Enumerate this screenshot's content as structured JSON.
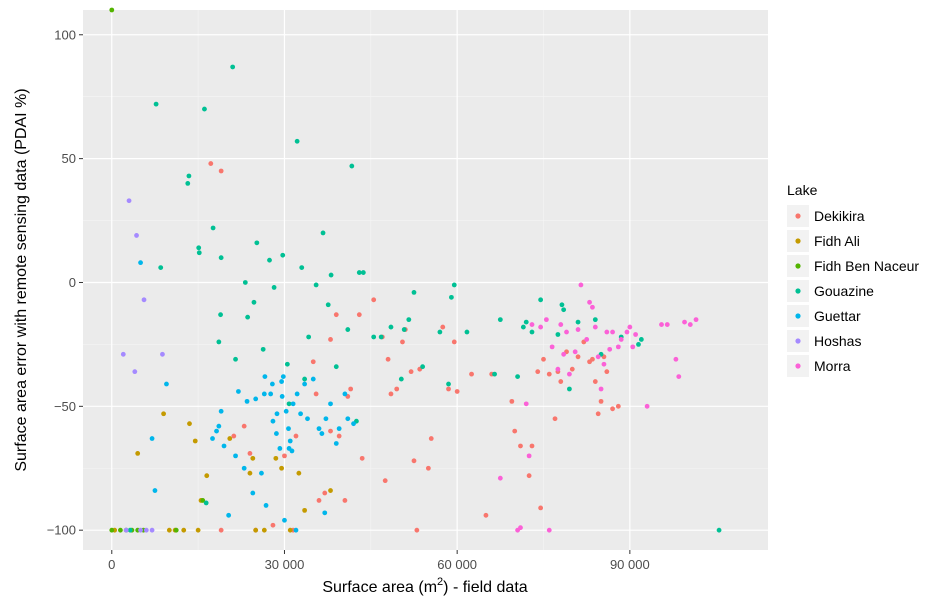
{
  "chart_data": {
    "type": "scatter",
    "title": "",
    "xlabel": "Surface area (m",
    "xlabel_sup": "2",
    "xlabel_tail": ") - field data",
    "ylabel": "Surface area error with remote sensing data (PDAI %)",
    "xlim": [
      -5000,
      114000
    ],
    "ylim": [
      -108,
      110
    ],
    "xticks": [
      {
        "value": 0,
        "label": "0"
      },
      {
        "value": 30000,
        "label": "30 000"
      },
      {
        "value": 60000,
        "label": "60 000"
      },
      {
        "value": 90000,
        "label": "90 000"
      }
    ],
    "yticks": [
      {
        "value": 100,
        "label": "100"
      },
      {
        "value": 50,
        "label": "50"
      },
      {
        "value": 0,
        "label": "0"
      },
      {
        "value": -50,
        "label": "−50"
      },
      {
        "value": -100,
        "label": "−100"
      }
    ],
    "grid": true,
    "legend_title": "Lake",
    "legend_position": "right",
    "series": [
      {
        "name": "Dekikira",
        "color": "#F8766D",
        "points": [
          [
            17200,
            48
          ],
          [
            19000,
            45
          ],
          [
            19000,
            -100
          ],
          [
            21200,
            -62
          ],
          [
            23000,
            -58
          ],
          [
            24000,
            -69
          ],
          [
            25000,
            -100
          ],
          [
            28000,
            -98
          ],
          [
            30000,
            -70
          ],
          [
            31500,
            -100
          ],
          [
            32000,
            -62
          ],
          [
            35000,
            -32
          ],
          [
            35500,
            -45
          ],
          [
            36000,
            -88
          ],
          [
            37000,
            -85
          ],
          [
            38000,
            -60
          ],
          [
            38000,
            -23
          ],
          [
            39000,
            -13
          ],
          [
            39500,
            -62
          ],
          [
            40500,
            -88
          ],
          [
            41000,
            -46
          ],
          [
            41500,
            -43
          ],
          [
            43000,
            -13
          ],
          [
            43500,
            -71
          ],
          [
            45500,
            -7
          ],
          [
            47000,
            -22
          ],
          [
            47500,
            -80
          ],
          [
            48000,
            -31
          ],
          [
            48500,
            -45
          ],
          [
            49500,
            -43
          ],
          [
            50500,
            -24
          ],
          [
            51000,
            -19
          ],
          [
            52000,
            -36
          ],
          [
            52500,
            -72
          ],
          [
            53000,
            -100
          ],
          [
            53500,
            -35
          ],
          [
            55000,
            -75
          ],
          [
            55500,
            -63
          ],
          [
            57500,
            -18
          ],
          [
            58500,
            -43
          ],
          [
            59500,
            -24
          ],
          [
            60000,
            -44
          ],
          [
            62500,
            -37
          ],
          [
            65000,
            -94
          ],
          [
            66000,
            -37
          ],
          [
            69500,
            -48
          ],
          [
            70000,
            -60
          ],
          [
            71000,
            -66
          ],
          [
            72500,
            -78
          ],
          [
            73000,
            -66
          ],
          [
            74000,
            -36
          ],
          [
            74500,
            -91
          ],
          [
            75000,
            -31
          ],
          [
            76000,
            -37
          ],
          [
            77000,
            -55
          ],
          [
            77500,
            -36
          ],
          [
            78000,
            -40
          ],
          [
            79000,
            -28
          ],
          [
            80000,
            -35
          ],
          [
            81000,
            -30
          ],
          [
            82000,
            -24
          ],
          [
            83000,
            -32
          ],
          [
            83500,
            -31
          ],
          [
            84000,
            -40
          ],
          [
            85000,
            -48
          ],
          [
            86000,
            -36
          ],
          [
            87000,
            -51
          ],
          [
            88000,
            -50
          ],
          [
            84500,
            -53
          ],
          [
            85500,
            -30
          ]
        ]
      },
      {
        "name": "Fidh Ali",
        "color": "#C49A00",
        "points": [
          [
            500,
            -100
          ],
          [
            4500,
            -69
          ],
          [
            9000,
            -53
          ],
          [
            10000,
            -100
          ],
          [
            11000,
            -100
          ],
          [
            12500,
            -100
          ],
          [
            13500,
            -57
          ],
          [
            14500,
            -64
          ],
          [
            15000,
            -100
          ],
          [
            15500,
            -88
          ],
          [
            16500,
            -78
          ],
          [
            20500,
            -63
          ],
          [
            24000,
            -77
          ],
          [
            25000,
            -100
          ],
          [
            24500,
            -71
          ],
          [
            26500,
            -100
          ],
          [
            28500,
            -71
          ],
          [
            29500,
            -75
          ],
          [
            31000,
            -100
          ],
          [
            32500,
            -77
          ],
          [
            33500,
            -92
          ],
          [
            38000,
            -84
          ]
        ]
      },
      {
        "name": "Fidh Ben Naceur",
        "color": "#53B400",
        "points": [
          [
            0,
            110
          ],
          [
            0,
            -100
          ],
          [
            1500,
            -100
          ],
          [
            2500,
            -100
          ],
          [
            3500,
            -100
          ],
          [
            4500,
            -100
          ],
          [
            5500,
            -100
          ],
          [
            11200,
            -100
          ],
          [
            15800,
            -88
          ]
        ]
      },
      {
        "name": "Gouazine",
        "color": "#00C094",
        "points": [
          [
            3200,
            -100
          ],
          [
            7700,
            72
          ],
          [
            8500,
            6
          ],
          [
            13200,
            40
          ],
          [
            13400,
            43
          ],
          [
            15100,
            14
          ],
          [
            15200,
            12
          ],
          [
            16100,
            70
          ],
          [
            16400,
            -89
          ],
          [
            17600,
            22
          ],
          [
            18600,
            -24
          ],
          [
            18900,
            -13
          ],
          [
            19000,
            10
          ],
          [
            21000,
            87
          ],
          [
            21500,
            -31
          ],
          [
            23200,
            0
          ],
          [
            23600,
            -14
          ],
          [
            24700,
            -8
          ],
          [
            25200,
            16
          ],
          [
            26300,
            -27
          ],
          [
            27400,
            9
          ],
          [
            28200,
            -2
          ],
          [
            29700,
            11
          ],
          [
            30500,
            -33
          ],
          [
            30800,
            -49
          ],
          [
            32200,
            57
          ],
          [
            33000,
            6
          ],
          [
            33500,
            -39
          ],
          [
            34200,
            -22
          ],
          [
            35500,
            -1
          ],
          [
            36700,
            20
          ],
          [
            37600,
            -9
          ],
          [
            38100,
            3
          ],
          [
            39000,
            -34
          ],
          [
            41000,
            -19
          ],
          [
            41700,
            47
          ],
          [
            42500,
            -56
          ],
          [
            43000,
            4
          ],
          [
            43700,
            4
          ],
          [
            45500,
            -22
          ],
          [
            46800,
            -22
          ],
          [
            48500,
            -18
          ],
          [
            50300,
            -39
          ],
          [
            50800,
            -19
          ],
          [
            51600,
            -15
          ],
          [
            52500,
            -4
          ],
          [
            54000,
            -34
          ],
          [
            57000,
            -20
          ],
          [
            58500,
            -41
          ],
          [
            59000,
            -6
          ],
          [
            59500,
            -1
          ],
          [
            61700,
            -20
          ],
          [
            66500,
            -37
          ],
          [
            67500,
            -15
          ],
          [
            70500,
            -38
          ],
          [
            71500,
            -18
          ],
          [
            72000,
            -16
          ],
          [
            73000,
            -20
          ],
          [
            74500,
            -7
          ],
          [
            77500,
            -21
          ],
          [
            78500,
            -11
          ],
          [
            78200,
            -9
          ],
          [
            79500,
            -43
          ],
          [
            81000,
            -16
          ],
          [
            84000,
            -15
          ],
          [
            85000,
            -29
          ],
          [
            88500,
            -22
          ],
          [
            91500,
            -25
          ],
          [
            92000,
            -23
          ],
          [
            105500,
            -100
          ]
        ]
      },
      {
        "name": "Guettar",
        "color": "#00B6EB",
        "points": [
          [
            5000,
            8
          ],
          [
            7000,
            -63
          ],
          [
            7500,
            -84
          ],
          [
            9500,
            -41
          ],
          [
            17500,
            -63
          ],
          [
            18200,
            -60
          ],
          [
            18600,
            -58
          ],
          [
            19000,
            -52
          ],
          [
            19500,
            -66
          ],
          [
            20300,
            -94
          ],
          [
            21500,
            -70
          ],
          [
            22000,
            -44
          ],
          [
            23000,
            -75
          ],
          [
            23500,
            -48
          ],
          [
            24500,
            -85
          ],
          [
            25000,
            -47
          ],
          [
            26000,
            -77
          ],
          [
            26500,
            -45
          ],
          [
            26600,
            -38
          ],
          [
            26800,
            -90
          ],
          [
            27600,
            -45
          ],
          [
            27900,
            -41
          ],
          [
            28000,
            -56
          ],
          [
            28600,
            -61
          ],
          [
            28700,
            -53
          ],
          [
            29200,
            -67
          ],
          [
            29500,
            -40
          ],
          [
            29600,
            -46
          ],
          [
            29800,
            -38
          ],
          [
            30000,
            -96
          ],
          [
            30300,
            -52
          ],
          [
            30700,
            -59
          ],
          [
            30800,
            -67
          ],
          [
            31000,
            -64
          ],
          [
            31300,
            -68
          ],
          [
            31500,
            -49
          ],
          [
            32000,
            -100
          ],
          [
            32200,
            -45
          ],
          [
            32800,
            -53
          ],
          [
            33500,
            -41
          ],
          [
            34000,
            -55
          ],
          [
            35000,
            -39
          ],
          [
            36000,
            -59
          ],
          [
            36500,
            -61
          ],
          [
            37000,
            -93
          ],
          [
            37200,
            -55
          ],
          [
            38000,
            -49
          ],
          [
            39000,
            -65
          ],
          [
            39500,
            -59
          ],
          [
            40500,
            -45
          ],
          [
            41000,
            -55
          ],
          [
            42000,
            -57
          ]
        ]
      },
      {
        "name": "Hoshas",
        "color": "#A58AFF",
        "points": [
          [
            2500,
            -100
          ],
          [
            2000,
            -29
          ],
          [
            3000,
            33
          ],
          [
            4000,
            -36
          ],
          [
            4300,
            19
          ],
          [
            5000,
            -100
          ],
          [
            5600,
            -7
          ],
          [
            6000,
            -100
          ],
          [
            7000,
            -100
          ],
          [
            8800,
            -29
          ]
        ]
      },
      {
        "name": "Morra",
        "color": "#FB61D7",
        "points": [
          [
            67500,
            -79
          ],
          [
            70500,
            -100
          ],
          [
            71000,
            -99
          ],
          [
            72000,
            -49
          ],
          [
            72500,
            -70
          ],
          [
            73000,
            -17
          ],
          [
            74500,
            -18
          ],
          [
            75500,
            -15
          ],
          [
            76000,
            -100
          ],
          [
            76500,
            -26
          ],
          [
            77500,
            -35
          ],
          [
            78000,
            -17
          ],
          [
            78500,
            -29
          ],
          [
            79000,
            -20
          ],
          [
            79500,
            -37
          ],
          [
            80500,
            -28
          ],
          [
            81000,
            -19
          ],
          [
            81500,
            -1
          ],
          [
            82500,
            -23
          ],
          [
            83000,
            -8
          ],
          [
            83500,
            -10
          ],
          [
            84000,
            -18
          ],
          [
            84500,
            -30
          ],
          [
            85000,
            -43
          ],
          [
            85500,
            -33
          ],
          [
            86000,
            -20
          ],
          [
            86500,
            -27
          ],
          [
            87000,
            -20
          ],
          [
            88000,
            -26
          ],
          [
            88500,
            -23
          ],
          [
            89500,
            -20
          ],
          [
            90000,
            -18
          ],
          [
            90500,
            -26
          ],
          [
            91000,
            -21
          ],
          [
            93000,
            -50
          ],
          [
            95500,
            -17
          ],
          [
            96500,
            -17
          ],
          [
            98000,
            -31
          ],
          [
            98500,
            -38
          ],
          [
            99500,
            -16
          ],
          [
            100500,
            -17
          ],
          [
            101500,
            -15
          ]
        ]
      }
    ]
  }
}
